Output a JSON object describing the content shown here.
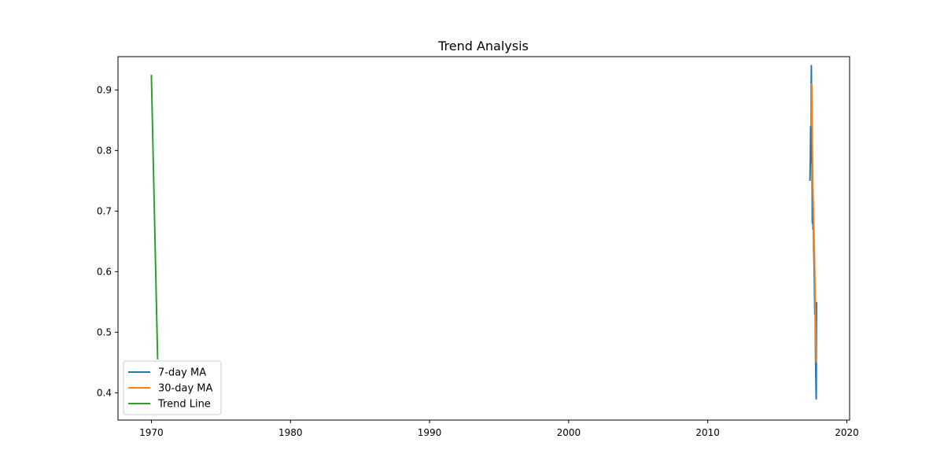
{
  "chart_data": {
    "type": "line",
    "title": "Trend Analysis",
    "xlabel": "",
    "ylabel": "",
    "xlim": [
      1967.6,
      2020.2
    ],
    "ylim": [
      0.355,
      0.955
    ],
    "x_ticks": [
      1970,
      1980,
      1990,
      2000,
      2010,
      2020
    ],
    "y_ticks": [
      0.4,
      0.5,
      0.6,
      0.7,
      0.8,
      0.9
    ],
    "x_tick_labels": [
      "1970",
      "1980",
      "1990",
      "2000",
      "2010",
      "2020"
    ],
    "y_tick_labels": [
      "0.4",
      "0.5",
      "0.6",
      "0.7",
      "0.8",
      "0.9"
    ],
    "grid": false,
    "legend_position": "lower-left",
    "series": [
      {
        "name": "7-day MA",
        "color": "#1f77b4",
        "x": [
          2017.35,
          2017.38,
          2017.4,
          2017.42,
          2017.45,
          2017.47,
          2017.5,
          2017.52,
          2017.55,
          2017.57,
          2017.6,
          2017.62,
          2017.65,
          2017.67,
          2017.7,
          2017.72,
          2017.75,
          2017.77,
          2017.8,
          2017.82
        ],
        "y": [
          0.75,
          0.79,
          0.84,
          0.78,
          0.94,
          0.86,
          0.8,
          0.68,
          0.71,
          0.67,
          0.69,
          0.64,
          0.61,
          0.58,
          0.53,
          0.55,
          0.47,
          0.43,
          0.39,
          0.55
        ]
      },
      {
        "name": "30-day MA",
        "color": "#ff7f0e",
        "x": [
          2017.45,
          2017.48,
          2017.5,
          2017.53,
          2017.56,
          2017.59,
          2017.62,
          2017.65,
          2017.68,
          2017.71,
          2017.74,
          2017.77,
          2017.8
        ],
        "y": [
          0.84,
          0.91,
          0.86,
          0.8,
          0.74,
          0.71,
          0.68,
          0.65,
          0.62,
          0.58,
          0.53,
          0.49,
          0.45
        ]
      },
      {
        "name": "Trend Line",
        "color": "#2ca02c",
        "x": [
          1970.0,
          1970.45
        ],
        "y": [
          0.925,
          0.455
        ]
      }
    ]
  }
}
